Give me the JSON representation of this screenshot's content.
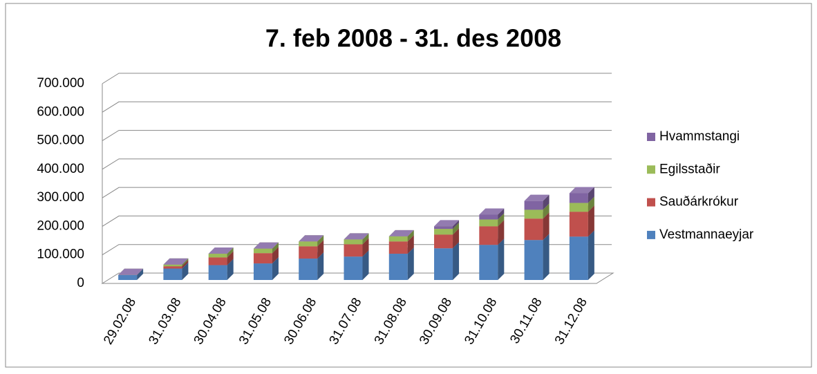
{
  "chart_data": {
    "type": "bar3d_stacked",
    "title": "7. feb 2008 - 31. des 2008",
    "categories": [
      "29.02.08",
      "31.03.08",
      "30.04.08",
      "31.05.08",
      "30.06.08",
      "31.07.08",
      "31.08.08",
      "30.09.08",
      "31.10.08",
      "30.11.08",
      "31.12.08"
    ],
    "series": [
      {
        "name": "Vestmannaeyjar",
        "color": "#4f81bd",
        "values": [
          18000,
          40000,
          52000,
          58000,
          75000,
          82000,
          92000,
          111000,
          123000,
          140000,
          152000
        ]
      },
      {
        "name": "Sauðárkrókur",
        "color": "#c0504d",
        "values": [
          0,
          8000,
          27000,
          36000,
          43000,
          43000,
          43000,
          48000,
          65000,
          75000,
          87000
        ]
      },
      {
        "name": "Egilsstaðir",
        "color": "#9bbb59",
        "values": [
          0,
          6000,
          13000,
          16000,
          17000,
          17000,
          18000,
          20000,
          24000,
          31000,
          31000
        ]
      },
      {
        "name": "Hvammstangi",
        "color": "#8064a2",
        "values": [
          0,
          0,
          0,
          0,
          0,
          0,
          0,
          9000,
          17000,
          31000,
          34000
        ]
      }
    ],
    "ylim": [
      0,
      700000
    ],
    "yticks": [
      0,
      {
        "value": 100000,
        "label": "100.000"
      },
      {
        "value": 200000,
        "label": "200.000"
      },
      {
        "value": 300000,
        "label": "300.000"
      },
      {
        "value": 400000,
        "label": "400.000"
      },
      {
        "value": 500000,
        "label": "500.000"
      },
      {
        "value": 600000,
        "label": "600.000"
      },
      {
        "value": 700000,
        "label": "700.000"
      }
    ],
    "grid": true,
    "legend": "right"
  }
}
